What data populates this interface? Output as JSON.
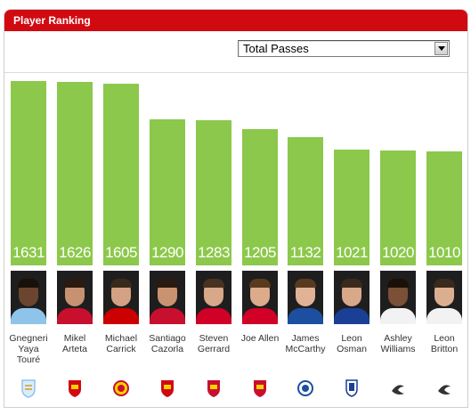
{
  "header": {
    "title": "Player Ranking"
  },
  "metric_select": {
    "selected": "Total Passes"
  },
  "colors": {
    "header": "#d10a11",
    "bar": "#8cc84b"
  },
  "chart_data": {
    "type": "bar",
    "title": "",
    "ylim": [
      0,
      1700
    ],
    "categories": [
      "Gnegneri Yaya Touré",
      "Mikel Arteta",
      "Michael Carrick",
      "Santiago Cazorla",
      "Steven Gerrard",
      "Joe Allen",
      "James McCarthy",
      "Leon Osman",
      "Ashley Williams",
      "Leon Britton"
    ],
    "values": [
      1631,
      1626,
      1605,
      1290,
      1283,
      1205,
      1132,
      1021,
      1020,
      1010
    ]
  },
  "players": [
    {
      "name_lines": [
        "Gnegneri",
        "Yaya",
        "Touré"
      ],
      "club_icon": "manchester-city-crest-icon",
      "skin": "#6b4530",
      "hair": "#1a1008",
      "shirt": "#8ec4ea",
      "club_color": "#8ec4ea"
    },
    {
      "name_lines": [
        "Mikel",
        "Arteta"
      ],
      "club_icon": "arsenal-crest-icon",
      "skin": "#c69272",
      "hair": "#2a1a10",
      "shirt": "#c8102e",
      "club_color": "#d10a11"
    },
    {
      "name_lines": [
        "Michael",
        "Carrick"
      ],
      "club_icon": "manchester-united-crest-icon",
      "skin": "#d4a184",
      "hair": "#3a2a1c",
      "shirt": "#cc0000",
      "club_color": "#e2571c"
    },
    {
      "name_lines": [
        "Santiago",
        "Cazorla"
      ],
      "club_icon": "arsenal-crest-icon",
      "skin": "#c99370",
      "hair": "#2a1a10",
      "shirt": "#c8102e",
      "club_color": "#d10a11"
    },
    {
      "name_lines": [
        "Steven",
        "Gerrard"
      ],
      "club_icon": "liverpool-crest-icon",
      "skin": "#d8a88a",
      "hair": "#4a3220",
      "shirt": "#d00027",
      "club_color": "#c8102e"
    },
    {
      "name_lines": [
        "Joe Allen"
      ],
      "club_icon": "liverpool-crest-icon",
      "skin": "#dbab8c",
      "hair": "#5a3a1e",
      "shirt": "#d00027",
      "club_color": "#c8102e"
    },
    {
      "name_lines": [
        "James",
        "McCarthy"
      ],
      "club_icon": "wigan-crest-icon",
      "skin": "#e0b396",
      "hair": "#5a3a1e",
      "shirt": "#1c4fa0",
      "club_color": "#1c4fa0"
    },
    {
      "name_lines": [
        "Leon",
        "Osman"
      ],
      "club_icon": "everton-crest-icon",
      "skin": "#d8a88a",
      "hair": "#3a2a1c",
      "shirt": "#1b3f94",
      "club_color": "#1b3f94"
    },
    {
      "name_lines": [
        "Ashley",
        "Williams"
      ],
      "club_icon": "swansea-crest-icon",
      "skin": "#7a5036",
      "hair": "#1a1008",
      "shirt": "#f2f2f2",
      "club_color": "#333333"
    },
    {
      "name_lines": [
        "Leon",
        "Britton"
      ],
      "club_icon": "swansea-crest-icon",
      "skin": "#dcae90",
      "hair": "#3a2a1c",
      "shirt": "#f2f2f2",
      "club_color": "#333333"
    }
  ]
}
